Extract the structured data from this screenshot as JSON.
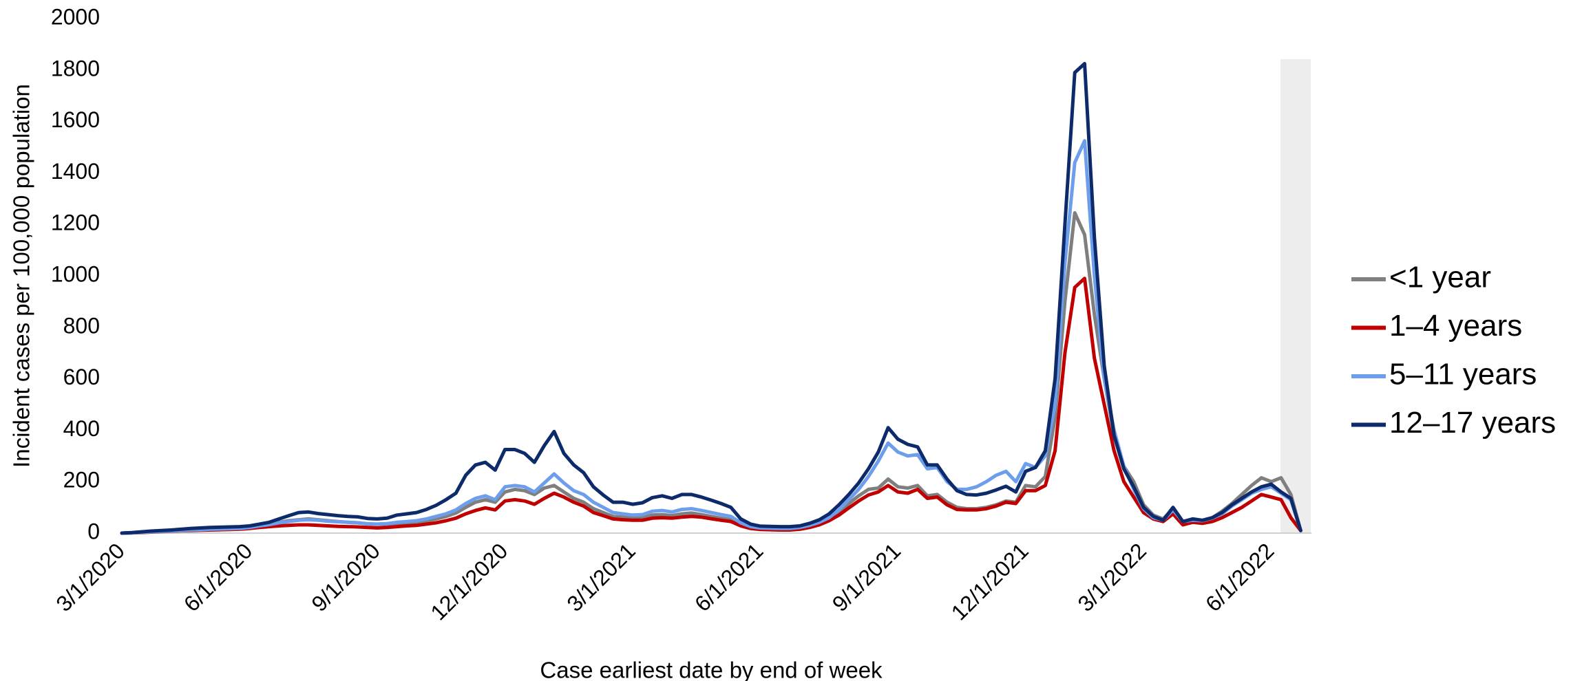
{
  "chart_data": {
    "type": "line",
    "xlabel": "Case earliest date by end of week",
    "ylabel": "Incident cases per 100,000 population",
    "categories": [
      "3/1/2020",
      null,
      null,
      null,
      null,
      null,
      null,
      null,
      null,
      null,
      null,
      null,
      null,
      "6/1/2020",
      null,
      null,
      null,
      null,
      null,
      null,
      null,
      null,
      null,
      null,
      null,
      null,
      "9/1/2020",
      null,
      null,
      null,
      null,
      null,
      null,
      null,
      null,
      null,
      null,
      null,
      null,
      "12/1/2020",
      null,
      null,
      null,
      null,
      null,
      null,
      null,
      null,
      null,
      null,
      null,
      null,
      "3/1/2021",
      null,
      null,
      null,
      null,
      null,
      null,
      null,
      null,
      null,
      null,
      null,
      null,
      "6/1/2021",
      null,
      null,
      null,
      null,
      null,
      null,
      null,
      null,
      null,
      null,
      null,
      null,
      null,
      "9/1/2021",
      null,
      null,
      null,
      null,
      null,
      null,
      null,
      null,
      null,
      null,
      null,
      null,
      "12/1/2021",
      null,
      null,
      null,
      null,
      null,
      null,
      null,
      null,
      null,
      null,
      null,
      "3/1/2022",
      null,
      null,
      null,
      null,
      null,
      null,
      null,
      null,
      null,
      null,
      null,
      null,
      "6/1/2022",
      null,
      null,
      null
    ],
    "ylim": [
      0,
      2000
    ],
    "yticks": [
      0,
      200,
      400,
      600,
      800,
      1000,
      1200,
      1400,
      1600,
      1800,
      2000
    ],
    "series": [
      {
        "name": "<1 year",
        "color": "#7f7f7f",
        "values": [
          0,
          1,
          3,
          5,
          7,
          9,
          11,
          13,
          15,
          17,
          18,
          19,
          20,
          24,
          30,
          36,
          42,
          48,
          52,
          55,
          52,
          48,
          45,
          42,
          40,
          36,
          34,
          35,
          38,
          40,
          42,
          48,
          55,
          65,
          78,
          100,
          120,
          130,
          120,
          160,
          170,
          165,
          150,
          175,
          185,
          160,
          135,
          120,
          95,
          80,
          65,
          62,
          58,
          60,
          70,
          72,
          68,
          75,
          78,
          72,
          65,
          58,
          52,
          32,
          22,
          18,
          17,
          16,
          16,
          20,
          28,
          38,
          55,
          80,
          115,
          145,
          170,
          175,
          210,
          180,
          175,
          185,
          145,
          150,
          120,
          100,
          95,
          95,
          100,
          110,
          125,
          120,
          185,
          180,
          220,
          450,
          900,
          1245,
          1160,
          850,
          600,
          380,
          260,
          200,
          110,
          70,
          55,
          95,
          45,
          52,
          48,
          60,
          85,
          115,
          150,
          185,
          215,
          200,
          215,
          150,
          10
        ]
      },
      {
        "name": "1–4 years",
        "color": "#c00000",
        "values": [
          0,
          1,
          2,
          4,
          6,
          7,
          9,
          10,
          11,
          12,
          13,
          14,
          15,
          18,
          22,
          25,
          28,
          30,
          32,
          32,
          30,
          28,
          26,
          25,
          24,
          22,
          20,
          22,
          25,
          28,
          30,
          35,
          40,
          48,
          58,
          75,
          88,
          98,
          90,
          125,
          130,
          125,
          112,
          135,
          155,
          140,
          120,
          105,
          80,
          68,
          55,
          52,
          50,
          50,
          58,
          60,
          58,
          62,
          65,
          62,
          56,
          50,
          45,
          28,
          18,
          14,
          13,
          12,
          12,
          15,
          22,
          32,
          48,
          70,
          98,
          125,
          148,
          160,
          185,
          160,
          155,
          170,
          135,
          140,
          110,
          92,
          90,
          90,
          95,
          105,
          120,
          115,
          165,
          165,
          185,
          320,
          700,
          955,
          990,
          680,
          500,
          320,
          200,
          140,
          80,
          55,
          45,
          75,
          32,
          42,
          38,
          45,
          60,
          80,
          100,
          125,
          150,
          140,
          130,
          60,
          10
        ]
      },
      {
        "name": "5–11 years",
        "color": "#6d9eeb",
        "values": [
          0,
          1,
          3,
          5,
          7,
          8,
          10,
          12,
          13,
          15,
          16,
          17,
          18,
          22,
          28,
          33,
          40,
          45,
          50,
          52,
          50,
          46,
          44,
          42,
          40,
          36,
          35,
          37,
          42,
          45,
          48,
          55,
          65,
          75,
          90,
          115,
          135,
          145,
          130,
          180,
          185,
          180,
          160,
          195,
          230,
          195,
          165,
          150,
          120,
          100,
          80,
          75,
          70,
          72,
          85,
          88,
          82,
          92,
          95,
          88,
          80,
          72,
          65,
          40,
          25,
          20,
          19,
          18,
          18,
          22,
          30,
          42,
          60,
          90,
          130,
          170,
          220,
          280,
          350,
          315,
          300,
          305,
          250,
          255,
          200,
          170,
          170,
          180,
          200,
          225,
          240,
          200,
          270,
          255,
          300,
          500,
          1050,
          1440,
          1525,
          1000,
          600,
          400,
          260,
          170,
          95,
          60,
          50,
          90,
          45,
          50,
          48,
          58,
          75,
          105,
          130,
          155,
          170,
          180,
          155,
          130,
          10
        ]
      },
      {
        "name": "12–17 years",
        "color": "#0d2a6b",
        "values": [
          0,
          2,
          5,
          8,
          10,
          12,
          15,
          18,
          20,
          22,
          23,
          24,
          25,
          28,
          35,
          42,
          55,
          68,
          80,
          82,
          76,
          72,
          68,
          65,
          63,
          57,
          55,
          58,
          70,
          75,
          80,
          92,
          108,
          130,
          155,
          225,
          265,
          275,
          245,
          325,
          325,
          310,
          275,
          340,
          395,
          310,
          265,
          235,
          180,
          148,
          120,
          120,
          112,
          118,
          138,
          145,
          135,
          150,
          150,
          140,
          128,
          115,
          100,
          55,
          35,
          27,
          26,
          25,
          25,
          28,
          38,
          52,
          75,
          110,
          150,
          195,
          250,
          315,
          410,
          365,
          345,
          335,
          265,
          265,
          210,
          165,
          150,
          148,
          155,
          168,
          182,
          160,
          240,
          255,
          320,
          600,
          1200,
          1790,
          1825,
          1150,
          650,
          380,
          250,
          180,
          100,
          65,
          50,
          100,
          45,
          55,
          50,
          60,
          80,
          110,
          135,
          160,
          180,
          190,
          160,
          135,
          10
        ]
      }
    ]
  }
}
